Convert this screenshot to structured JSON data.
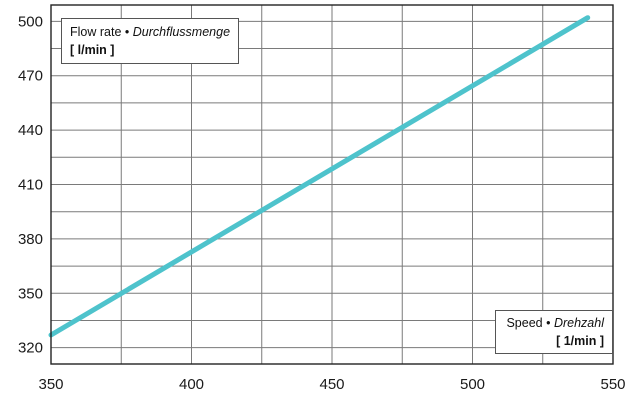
{
  "chart_data": {
    "type": "line",
    "ylabel": {
      "title": "Flow rate",
      "bullet": "•",
      "title_italic": "Durchflussmenge",
      "unit": "[ l/min ]"
    },
    "xlabel": {
      "title": "Speed",
      "bullet": "•",
      "title_italic": "Drehzahl",
      "unit": "[ 1/min ]"
    },
    "xlim": [
      350,
      550
    ],
    "ylim": [
      311,
      509
    ],
    "x_ticks": [
      350,
      400,
      450,
      500,
      550
    ],
    "x_ticks_minor": [
      375,
      425,
      475,
      525
    ],
    "y_ticks": [
      320,
      350,
      380,
      410,
      440,
      470,
      500
    ],
    "y_ticks_minor": [
      335,
      365,
      395,
      425,
      455,
      485
    ],
    "grid": true,
    "series": [
      {
        "color": "#4ec3cc",
        "x": [
          350,
          541
        ],
        "y": [
          327,
          502
        ]
      }
    ]
  }
}
